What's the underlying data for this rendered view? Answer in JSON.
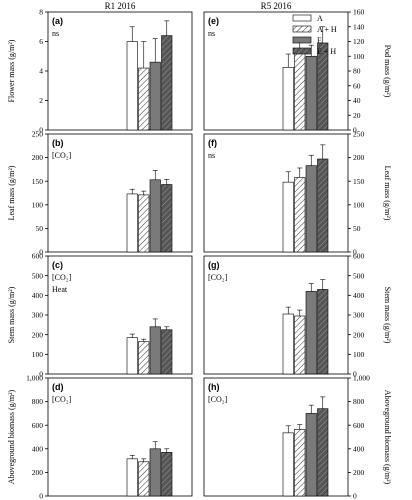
{
  "column_titles": [
    "R1 2016",
    "R5 2016"
  ],
  "legend": {
    "entries": [
      "A",
      "A + H",
      "E",
      "E + H"
    ]
  },
  "chart_data": [
    {
      "id": "a",
      "type": "bar",
      "label": "(a)",
      "column": "R1 2016",
      "ylabel": "Flower mass (g/m²)",
      "axis_side": "left",
      "ylim": [
        0,
        8
      ],
      "ticks": [
        "0",
        "2",
        "4",
        "6",
        "8"
      ],
      "tick_values": [
        0,
        2,
        4,
        6,
        8
      ],
      "annotations": [
        "ns"
      ],
      "categories": [
        "A",
        "A + H",
        "E",
        "E + H"
      ],
      "values": [
        6.0,
        4.2,
        4.6,
        6.4
      ],
      "errors": [
        1.0,
        1.8,
        1.6,
        1.0
      ]
    },
    {
      "id": "b",
      "type": "bar",
      "label": "(b)",
      "column": "R1 2016",
      "ylabel": "Leaf mass (g/m²)",
      "axis_side": "left",
      "ylim": [
        0,
        250
      ],
      "ticks": [
        "0",
        "50",
        "100",
        "150",
        "200",
        "250"
      ],
      "tick_values": [
        0,
        50,
        100,
        150,
        200,
        250
      ],
      "annotations": [
        "[CO₂]"
      ],
      "categories": [
        "A",
        "A + H",
        "E",
        "E + H"
      ],
      "values": [
        123,
        121,
        153,
        143
      ],
      "errors": [
        10,
        8,
        20,
        11
      ]
    },
    {
      "id": "c",
      "type": "bar",
      "label": "(c)",
      "column": "R1 2016",
      "ylabel": "Stem mass (g/m²)",
      "axis_side": "left",
      "ylim": [
        0,
        600
      ],
      "ticks": [
        "0",
        "100",
        "200",
        "300",
        "400",
        "500",
        "600"
      ],
      "tick_values": [
        0,
        100,
        200,
        300,
        400,
        500,
        600
      ],
      "annotations": [
        "[CO₂]",
        "Heat"
      ],
      "categories": [
        "A",
        "A + H",
        "E",
        "E + H"
      ],
      "values": [
        185,
        165,
        240,
        225
      ],
      "errors": [
        18,
        12,
        40,
        15
      ]
    },
    {
      "id": "d",
      "type": "bar",
      "label": "(d)",
      "column": "R1 2016",
      "ylabel": "Aboveground biomass (g/m²)",
      "axis_side": "left",
      "ylim": [
        0,
        1000
      ],
      "ticks": [
        "0",
        "200",
        "400",
        "600",
        "800",
        "1,000"
      ],
      "tick_values": [
        0,
        200,
        400,
        600,
        800,
        1000
      ],
      "annotations": [
        "[CO₂]"
      ],
      "categories": [
        "A",
        "A + H",
        "E",
        "E + H"
      ],
      "values": [
        315,
        290,
        400,
        370
      ],
      "errors": [
        30,
        25,
        60,
        30
      ]
    },
    {
      "id": "e",
      "type": "bar",
      "label": "(e)",
      "column": "R5 2016",
      "ylabel": "Pod mass (g/m²)",
      "axis_side": "right",
      "ylim": [
        0,
        160
      ],
      "ticks": [
        "0",
        "20",
        "40",
        "60",
        "80",
        "100",
        "120",
        "140",
        "160"
      ],
      "tick_values": [
        0,
        20,
        40,
        60,
        80,
        100,
        120,
        140,
        160
      ],
      "annotations": [
        "ns"
      ],
      "categories": [
        "A",
        "A + H",
        "E",
        "E + H"
      ],
      "values": [
        85,
        110,
        100,
        118
      ],
      "errors": [
        18,
        10,
        15,
        22
      ]
    },
    {
      "id": "f",
      "type": "bar",
      "label": "(f)",
      "column": "R5 2016",
      "ylabel": "Leaf mass (g/m²)",
      "axis_side": "right",
      "ylim": [
        0,
        250
      ],
      "ticks": [
        "0",
        "50",
        "100",
        "150",
        "200",
        "250"
      ],
      "tick_values": [
        0,
        50,
        100,
        150,
        200,
        250
      ],
      "annotations": [
        "ns"
      ],
      "categories": [
        "A",
        "A + H",
        "E",
        "E + H"
      ],
      "values": [
        148,
        158,
        183,
        197
      ],
      "errors": [
        22,
        20,
        22,
        30
      ]
    },
    {
      "id": "g",
      "type": "bar",
      "label": "(g)",
      "column": "R5 2016",
      "ylabel": "Stem mass (g/m²)",
      "axis_side": "right",
      "ylim": [
        0,
        600
      ],
      "ticks": [
        "0",
        "100",
        "200",
        "300",
        "400",
        "500",
        "600"
      ],
      "tick_values": [
        0,
        100,
        200,
        300,
        400,
        500,
        600
      ],
      "annotations": [
        "[CO₂]"
      ],
      "categories": [
        "A",
        "A + H",
        "E",
        "E + H"
      ],
      "values": [
        305,
        295,
        420,
        430
      ],
      "errors": [
        35,
        30,
        40,
        50
      ]
    },
    {
      "id": "h",
      "type": "bar",
      "label": "(h)",
      "column": "R5 2016",
      "ylabel": "Aboveground biomass (g/m²)",
      "axis_side": "right",
      "ylim": [
        0,
        1000
      ],
      "ticks": [
        "0",
        "200",
        "400",
        "600",
        "800",
        "1,000"
      ],
      "tick_values": [
        0,
        200,
        400,
        600,
        800,
        1000
      ],
      "annotations": [
        "[CO₂]"
      ],
      "categories": [
        "A",
        "A + H",
        "E",
        "E + H"
      ],
      "values": [
        535,
        565,
        700,
        740
      ],
      "errors": [
        60,
        40,
        70,
        100
      ]
    }
  ]
}
